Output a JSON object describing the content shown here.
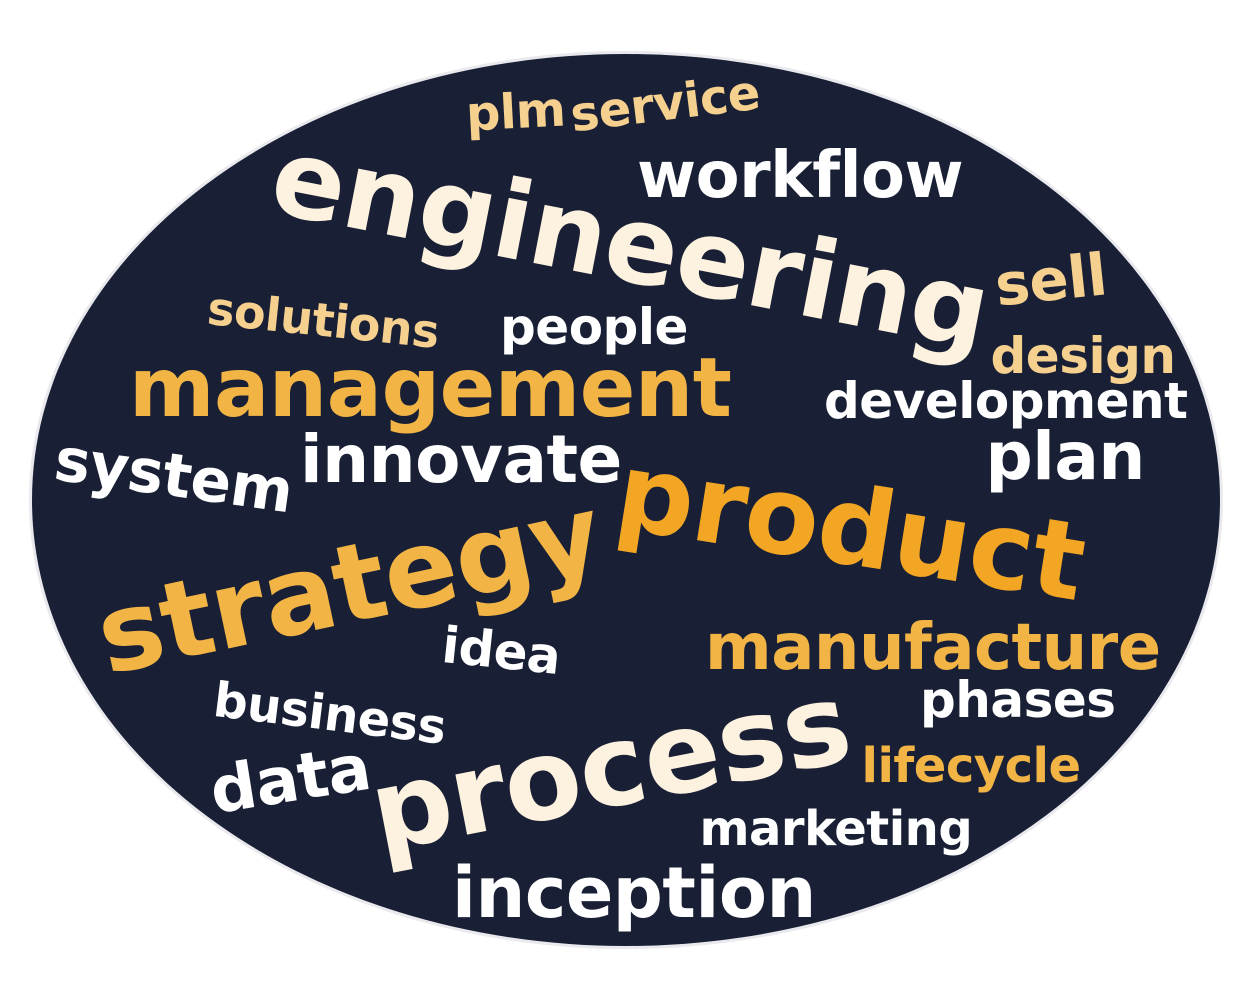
{
  "colors": {
    "background": "#ffffff",
    "oval": "#192036",
    "white": "#ffffff",
    "cream": "#fdf2df",
    "light_gold": "#f6d08e",
    "gold": "#f2b445",
    "orange": "#f3a624"
  },
  "words": [
    {
      "text": "plm",
      "weight": 3,
      "color": "light_gold",
      "rotation": -3
    },
    {
      "text": "service",
      "weight": 3,
      "color": "light_gold",
      "rotation": -7
    },
    {
      "text": "workflow",
      "weight": 4,
      "color": "white",
      "rotation": 0
    },
    {
      "text": "engineering",
      "weight": 9,
      "color": "cream",
      "rotation": 11
    },
    {
      "text": "sell",
      "weight": 3,
      "color": "light_gold",
      "rotation": -6
    },
    {
      "text": "solutions",
      "weight": 3,
      "color": "light_gold",
      "rotation": 6
    },
    {
      "text": "people",
      "weight": 3,
      "color": "white",
      "rotation": 0
    },
    {
      "text": "design",
      "weight": 3,
      "color": "light_gold",
      "rotation": 0
    },
    {
      "text": "management",
      "weight": 6,
      "color": "gold",
      "rotation": 0
    },
    {
      "text": "development",
      "weight": 3,
      "color": "white",
      "rotation": 0
    },
    {
      "text": "system",
      "weight": 4,
      "color": "white",
      "rotation": 8
    },
    {
      "text": "innovate",
      "weight": 4,
      "color": "white",
      "rotation": 0
    },
    {
      "text": "plan",
      "weight": 4,
      "color": "white",
      "rotation": 0
    },
    {
      "text": "product",
      "weight": 8,
      "color": "orange",
      "rotation": 9
    },
    {
      "text": "strategy",
      "weight": 8,
      "color": "gold",
      "rotation": -12
    },
    {
      "text": "idea",
      "weight": 3,
      "color": "white",
      "rotation": 6
    },
    {
      "text": "manufacture",
      "weight": 5,
      "color": "gold",
      "rotation": 0
    },
    {
      "text": "business",
      "weight": 3,
      "color": "white",
      "rotation": 7
    },
    {
      "text": "phases",
      "weight": 3,
      "color": "white",
      "rotation": 0
    },
    {
      "text": "process",
      "weight": 8,
      "color": "cream",
      "rotation": -11
    },
    {
      "text": "lifecycle",
      "weight": 3,
      "color": "gold",
      "rotation": 0
    },
    {
      "text": "data",
      "weight": 4,
      "color": "white",
      "rotation": -9
    },
    {
      "text": "marketing",
      "weight": 3,
      "color": "white",
      "rotation": 0
    },
    {
      "text": "inception",
      "weight": 5,
      "color": "white",
      "rotation": 0
    }
  ]
}
